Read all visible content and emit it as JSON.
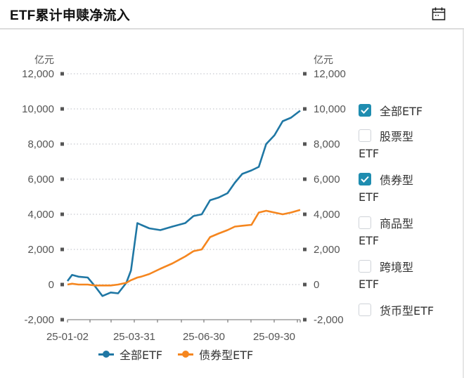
{
  "header": {
    "title": "ETF累计申赎净流入",
    "calendar_icon": "calendar-icon"
  },
  "colors": {
    "all_etf": "#1f77a4",
    "bond_etf": "#f5861f",
    "checkbox_checked": "#1f8db0",
    "grid": "#b9bdc4",
    "axis_text": "#555555"
  },
  "legend": {
    "items": [
      {
        "label": "全部ETF",
        "color": "#1f77a4"
      },
      {
        "label": "债券型ETF",
        "color": "#f5861f"
      }
    ]
  },
  "filters": {
    "items": [
      {
        "label": "全部ETF",
        "line1": "全部ETF",
        "line2": "",
        "checked": true
      },
      {
        "label": "股票型ETF",
        "line1": "股票型",
        "line2": "ETF",
        "checked": false
      },
      {
        "label": "债券型ETF",
        "line1": "债券型",
        "line2": "ETF",
        "checked": true
      },
      {
        "label": "商品型ETF",
        "line1": "商品型",
        "line2": "ETF",
        "checked": false
      },
      {
        "label": "跨境型ETF",
        "line1": "跨境型",
        "line2": "ETF",
        "checked": false
      },
      {
        "label": "货币型ETF",
        "line1": "货币型ETF",
        "line2": "",
        "checked": false
      }
    ]
  },
  "chart_data": {
    "type": "line",
    "title": "ETF累计申赎净流入",
    "xlabel": "",
    "ylabel": "亿元",
    "ylabel_right": "亿元",
    "ylim": [
      -2000,
      12000
    ],
    "yticks": [
      "12,000",
      "10,000",
      "8,000",
      "6,000",
      "4,000",
      "2,000",
      "0",
      "-2,000"
    ],
    "xticks": [
      "25-01-02",
      "25-03-31",
      "25-06-30",
      "25-09-30"
    ],
    "grid": true,
    "legend_position": "bottom",
    "x": [
      "25-01-02",
      "25-01-10",
      "25-01-20",
      "25-02-05",
      "25-02-15",
      "25-02-25",
      "25-03-05",
      "25-03-15",
      "25-03-25",
      "25-03-31",
      "25-04-08",
      "25-04-15",
      "25-04-25",
      "25-05-10",
      "25-05-25",
      "25-06-10",
      "25-06-20",
      "25-06-30",
      "25-07-10",
      "25-07-20",
      "25-08-01",
      "25-08-10",
      "25-08-20",
      "25-09-01",
      "25-09-10",
      "25-09-20",
      "25-09-30",
      "25-10-10",
      "25-10-20",
      "25-10-31"
    ],
    "series": [
      {
        "name": "全部ETF",
        "values": [
          200,
          550,
          450,
          400,
          -100,
          -650,
          -450,
          -500,
          100,
          800,
          3500,
          3400,
          3200,
          3100,
          3300,
          3500,
          3900,
          4000,
          4800,
          4950,
          5200,
          5800,
          6300,
          6500,
          6700,
          8000,
          8500,
          9300,
          9500,
          9900
        ]
      },
      {
        "name": "债券型ETF",
        "values": [
          0,
          50,
          0,
          0,
          -50,
          -50,
          -50,
          0,
          100,
          250,
          400,
          450,
          600,
          900,
          1200,
          1600,
          1900,
          2000,
          2700,
          2900,
          3100,
          3300,
          3350,
          3400,
          4100,
          4200,
          4100,
          4000,
          4100,
          4250
        ]
      }
    ]
  }
}
